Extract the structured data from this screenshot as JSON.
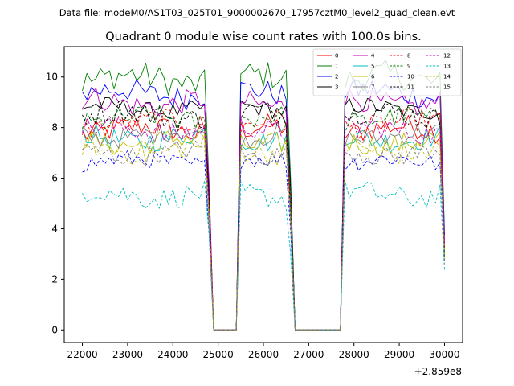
{
  "chart_data": {
    "type": "line",
    "suptitle": "Data file: modeM0/AS1T03_025T01_9000002670_17957cztM0_level2_quad_clean.evt",
    "title": "Quadrant 0 module wise count rates with 100.0s bins.",
    "xlabel": "",
    "ylabel": "",
    "x_offset_label": "+2.859e8",
    "xlim": [
      21600,
      30400
    ],
    "ylim": [
      -0.5,
      11.2
    ],
    "xticks": [
      22000,
      23000,
      24000,
      25000,
      26000,
      27000,
      28000,
      29000,
      30000
    ],
    "xtick_labels": [
      "22000",
      "23000",
      "24000",
      "25000",
      "26000",
      "27000",
      "28000",
      "29000",
      "30000"
    ],
    "yticks": [
      0,
      2,
      4,
      6,
      8,
      10
    ],
    "ytick_labels": [
      "0",
      "2",
      "4",
      "6",
      "8",
      "10"
    ],
    "x_start": 22000,
    "x_step": 100,
    "zero_segments": [
      [
        24900,
        25400
      ],
      [
        26700,
        27700
      ]
    ],
    "edge_values": {
      "24800": "sixty_pct",
      "25500": "full",
      "26600": "sixty_pct",
      "27800": "full",
      "30000": "forty_pct"
    },
    "legend_position": "upper right",
    "legend_columns": 4,
    "series": [
      {
        "name": "0",
        "color": "#ff0000",
        "dash": "solid",
        "base": 7.9,
        "amp": 0.3
      },
      {
        "name": "1",
        "color": "#008000",
        "dash": "solid",
        "base": 9.9,
        "amp": 0.35
      },
      {
        "name": "2",
        "color": "#0000ff",
        "dash": "solid",
        "base": 9.35,
        "amp": 0.3
      },
      {
        "name": "3",
        "color": "#000000",
        "dash": "solid",
        "base": 8.75,
        "amp": 0.22
      },
      {
        "name": "4",
        "color": "#bf00bf",
        "dash": "solid",
        "base": 9.0,
        "amp": 0.3
      },
      {
        "name": "5",
        "color": "#00bfbf",
        "dash": "solid",
        "base": 7.6,
        "amp": 0.28
      },
      {
        "name": "6",
        "color": "#bfbf00",
        "dash": "solid",
        "base": 7.45,
        "amp": 0.28
      },
      {
        "name": "7",
        "color": "#808080",
        "dash": "solid",
        "base": 7.7,
        "amp": 0.25
      },
      {
        "name": "8",
        "color": "#ff0000",
        "dash": "dashed",
        "base": 8.15,
        "amp": 0.28
      },
      {
        "name": "9",
        "color": "#008000",
        "dash": "dashed",
        "base": 8.3,
        "amp": 0.28
      },
      {
        "name": "10",
        "color": "#0000ff",
        "dash": "dashed",
        "base": 6.65,
        "amp": 0.22
      },
      {
        "name": "11",
        "color": "#000000",
        "dash": "dashed",
        "base": 8.5,
        "amp": 0.3
      },
      {
        "name": "12",
        "color": "#bf00bf",
        "dash": "dashed",
        "base": 7.9,
        "amp": 0.28
      },
      {
        "name": "13",
        "color": "#00bfbf",
        "dash": "dashed",
        "base": 5.35,
        "amp": 0.28
      },
      {
        "name": "14",
        "color": "#bfbf00",
        "dash": "dashed",
        "base": 7.15,
        "amp": 0.3
      },
      {
        "name": "15",
        "color": "#808080",
        "dash": "dashed",
        "base": 7.0,
        "amp": 0.25
      }
    ]
  }
}
